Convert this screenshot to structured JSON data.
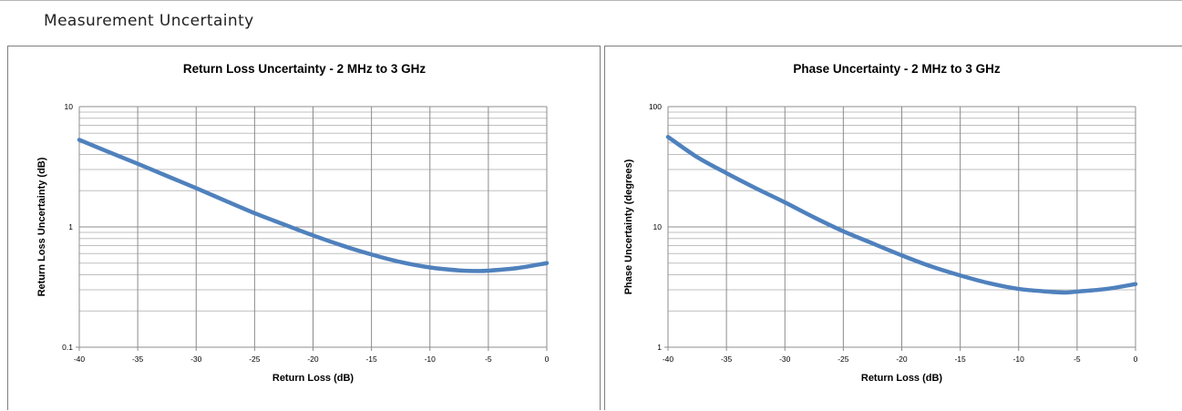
{
  "page": {
    "section_title": "Measurement Uncertainty"
  },
  "chart_data": [
    {
      "type": "line",
      "title": "Return Loss Uncertainty - 2 MHz to 3 GHz",
      "xlabel": "Return Loss (dB)",
      "ylabel": "Return Loss Uncertainty (dB)",
      "xlim": [
        -40,
        0
      ],
      "ylim": [
        0.1,
        10
      ],
      "y_scale": "log",
      "x_ticks": [
        -40,
        -35,
        -30,
        -25,
        -20,
        -15,
        -10,
        -5,
        0
      ],
      "x_tick_labels": [
        "-40",
        "-35",
        "-30",
        "-25",
        "-20",
        "-15",
        "-10",
        "-5",
        "0"
      ],
      "y_ticks": [
        0.1,
        1,
        10
      ],
      "y_tick_labels": [
        "0.1",
        "1",
        "10"
      ],
      "grid": true,
      "legend": "none",
      "series_color": "#4f81bd",
      "series": [
        {
          "x": [
            -40,
            -37.5,
            -35,
            -32.5,
            -30,
            -27.5,
            -25,
            -22.5,
            -20,
            -17.5,
            -15,
            -12.5,
            -10,
            -7.5,
            -6,
            -5,
            -2.5,
            0
          ],
          "values": [
            5.3,
            4.2,
            3.35,
            2.65,
            2.1,
            1.65,
            1.3,
            1.05,
            0.85,
            0.7,
            0.59,
            0.51,
            0.46,
            0.435,
            0.43,
            0.433,
            0.455,
            0.5
          ]
        }
      ]
    },
    {
      "type": "line",
      "title": "Phase Uncertainty - 2 MHz to 3 GHz",
      "xlabel": "Return Loss (dB)",
      "ylabel": "Phase Uncertainty (degrees)",
      "xlim": [
        -40,
        0
      ],
      "ylim": [
        1,
        100
      ],
      "y_scale": "log",
      "x_ticks": [
        -40,
        -35,
        -30,
        -25,
        -20,
        -15,
        -10,
        -5,
        0
      ],
      "x_tick_labels": [
        "-40",
        "-35",
        "-30",
        "-25",
        "-20",
        "-15",
        "-10",
        "-5",
        "0"
      ],
      "y_ticks": [
        1,
        10,
        100
      ],
      "y_tick_labels": [
        "1",
        "10",
        "100"
      ],
      "grid": true,
      "legend": "none",
      "series_color": "#4f81bd",
      "series": [
        {
          "x": [
            -40,
            -37.5,
            -35,
            -32.5,
            -30,
            -27.5,
            -25,
            -22.5,
            -20,
            -17.5,
            -15,
            -12.5,
            -10,
            -7.5,
            -6,
            -5,
            -2.5,
            0
          ],
          "values": [
            56,
            38,
            28,
            21,
            16,
            12,
            9.2,
            7.3,
            5.8,
            4.7,
            3.95,
            3.4,
            3.05,
            2.9,
            2.85,
            2.9,
            3.05,
            3.35
          ]
        }
      ]
    }
  ]
}
